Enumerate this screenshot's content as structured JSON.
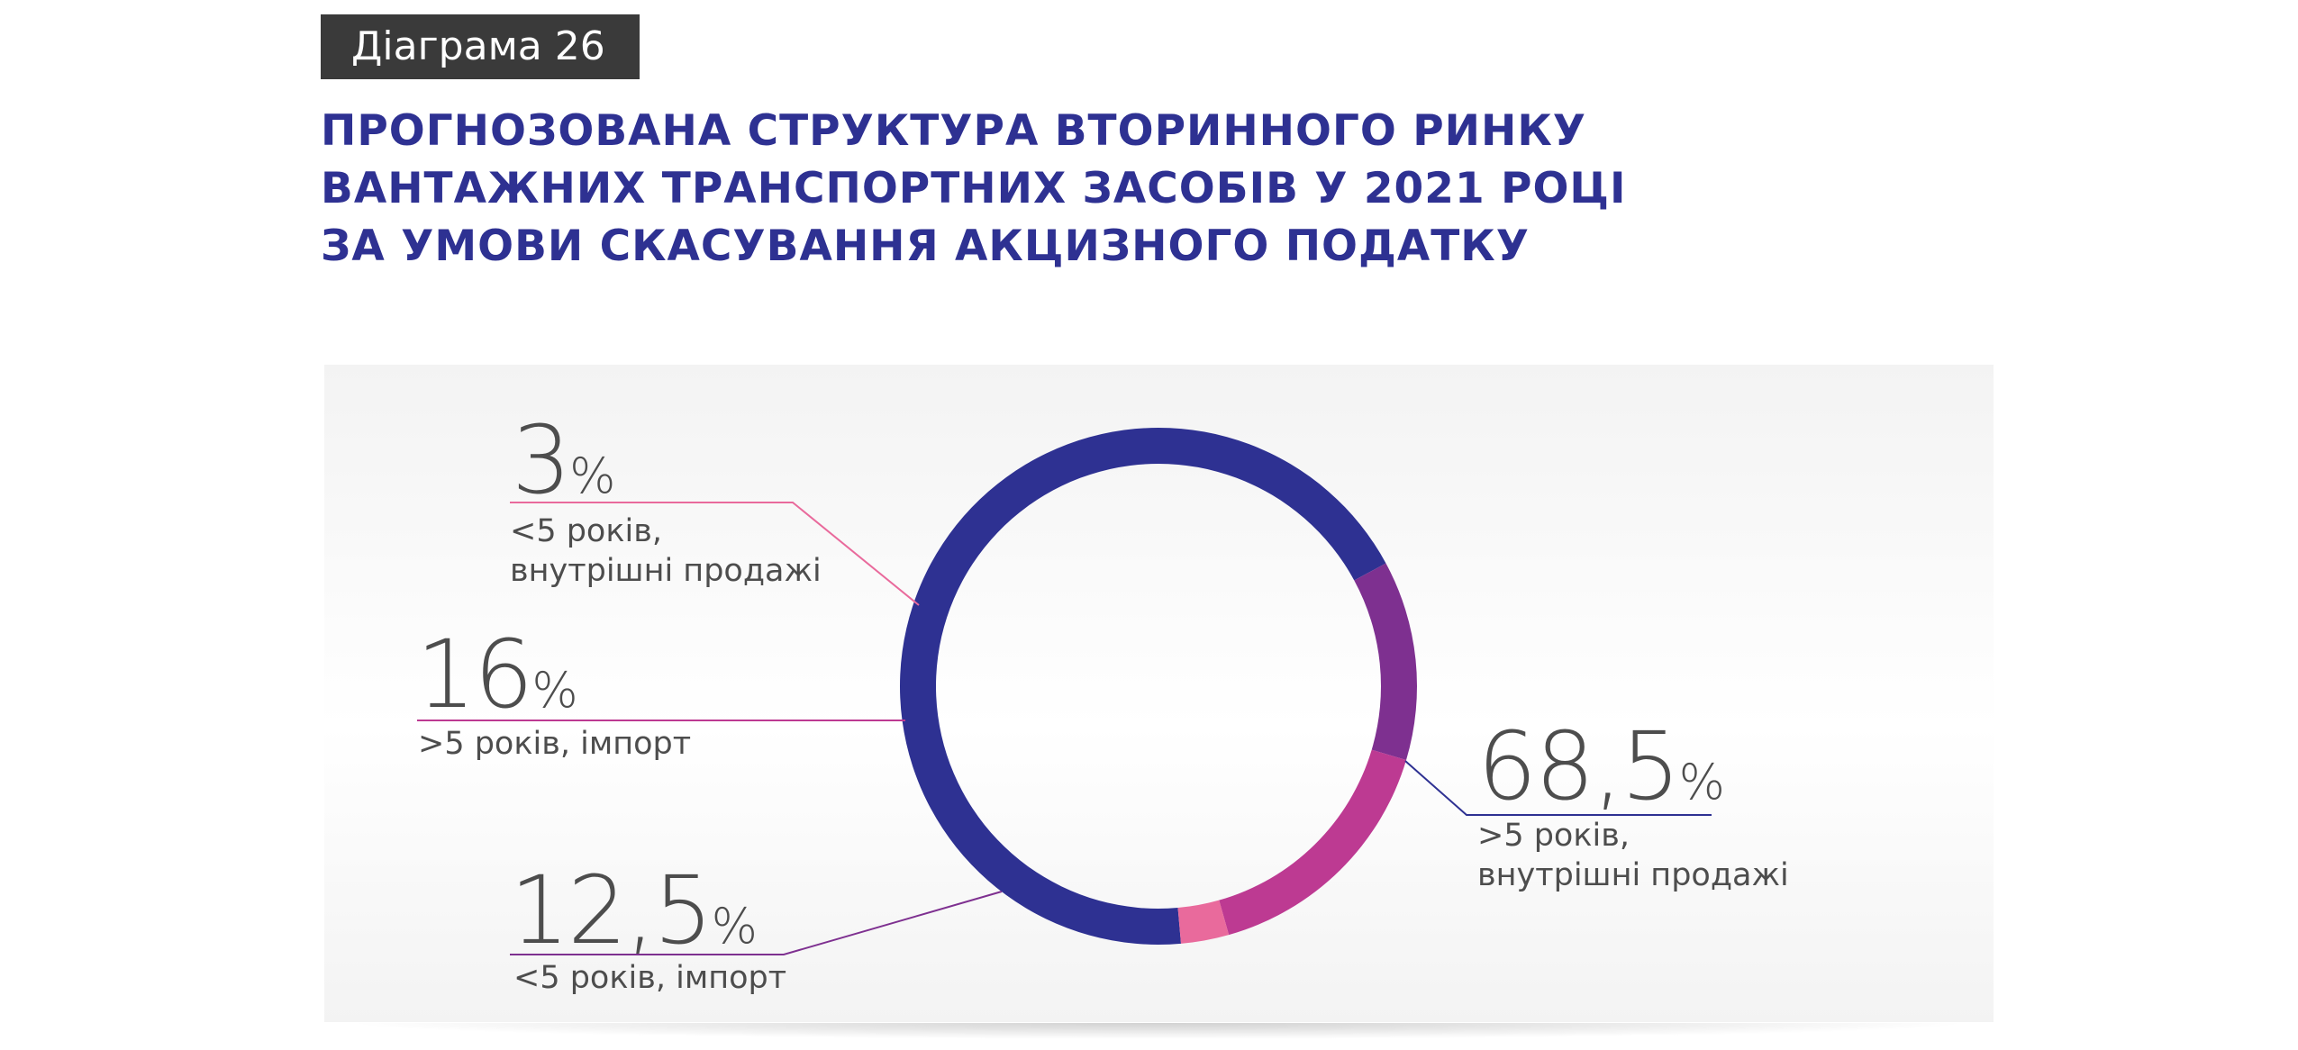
{
  "badge": "Діаграма 26",
  "title": {
    "line1": "ПРОГНОЗОВАНА СТРУКТУРА ВТОРИННОГО РИНКУ",
    "line2": "ВАНТАЖНИХ ТРАНСПОРТНИХ ЗАСОБІВ У 2021 РОЦІ",
    "line3": "ЗА УМОВИ СКАСУВАННЯ АКЦИЗНОГО ПОДАТКУ"
  },
  "chart_data": {
    "type": "pie",
    "style": "donut",
    "title": "ПРОГНОЗОВАНА СТРУКТУРА ВТОРИННОГО РИНКУ ВАНТАЖНИХ ТРАНСПОРТНИХ ЗАСОБІВ У 2021 РОЦІ ЗА УМОВИ СКАСУВАННЯ АКЦИЗНОГО ПОДАТКУ",
    "unit": "%",
    "slices": [
      {
        "label_line1": ">5 років,",
        "label_line2": "внутрішні продажі",
        "value": 68.5,
        "value_text": "68,5",
        "color": "#2e3192"
      },
      {
        "label_line1": "<5 років, імпорт",
        "label_line2": "",
        "value": 12.5,
        "value_text": "12,5",
        "color": "#7e3090"
      },
      {
        "label_line1": ">5 років, імпорт",
        "label_line2": "",
        "value": 16,
        "value_text": "16",
        "color": "#bd3a92"
      },
      {
        "label_line1": "<5 років,",
        "label_line2": "внутрішні продажі",
        "value": 3,
        "value_text": "3",
        "color": "#e96a9c"
      }
    ]
  }
}
